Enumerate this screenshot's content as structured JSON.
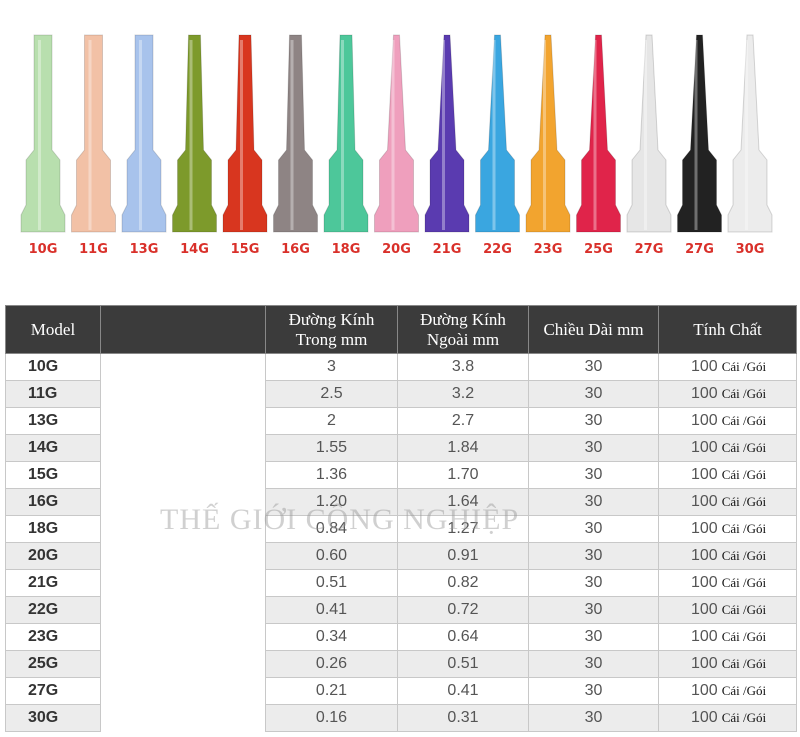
{
  "tips": [
    {
      "label": "10G",
      "color": "#b8dfae"
    },
    {
      "label": "11G",
      "color": "#f2c1a6"
    },
    {
      "label": "13G",
      "color": "#a8c3ec"
    },
    {
      "label": "14G",
      "color": "#7d9a2b"
    },
    {
      "label": "15G",
      "color": "#d8361f"
    },
    {
      "label": "16G",
      "color": "#8e8484"
    },
    {
      "label": "18G",
      "color": "#4dc79a"
    },
    {
      "label": "20G",
      "color": "#ef9fbd"
    },
    {
      "label": "21G",
      "color": "#5a3bb0"
    },
    {
      "label": "22G",
      "color": "#3aa6e0"
    },
    {
      "label": "23G",
      "color": "#f2a42f"
    },
    {
      "label": "25G",
      "color": "#e0244a"
    },
    {
      "label": "27G",
      "color": "#e6e6e6"
    },
    {
      "label": "27G",
      "color": "#222222"
    },
    {
      "label": "30G",
      "color": "#ececec"
    }
  ],
  "label_color": "#d9302a",
  "table": {
    "headers": [
      "Model",
      "",
      "Đường Kính\nTrong  mm",
      "Đường Kính\nNgoài  mm",
      "Chiều Dài mm",
      "Tính Chất"
    ],
    "unit": "Cái /Gói",
    "rows": [
      [
        "10G",
        "3",
        "3.8",
        "30",
        "100"
      ],
      [
        "11G",
        "2.5",
        "3.2",
        "30",
        "100"
      ],
      [
        "13G",
        "2",
        "2.7",
        "30",
        "100"
      ],
      [
        "14G",
        "1.55",
        "1.84",
        "30",
        "100"
      ],
      [
        "15G",
        "1.36",
        "1.70",
        "30",
        "100"
      ],
      [
        "16G",
        "1.20",
        "1.64",
        "30",
        "100"
      ],
      [
        "18G",
        "0.84",
        "1.27",
        "30",
        "100"
      ],
      [
        "20G",
        "0.60",
        "0.91",
        "30",
        "100"
      ],
      [
        "21G",
        "0.51",
        "0.82",
        "30",
        "100"
      ],
      [
        "22G",
        "0.41",
        "0.72",
        "30",
        "100"
      ],
      [
        "23G",
        "0.34",
        "0.64",
        "30",
        "100"
      ],
      [
        "25G",
        "0.26",
        "0.51",
        "30",
        "100"
      ],
      [
        "27G",
        "0.21",
        "0.41",
        "30",
        "100"
      ],
      [
        "30G",
        "0.16",
        "0.31",
        "30",
        "100"
      ]
    ]
  },
  "watermark": "THẾ GIỚI CÔNG NGHIỆP"
}
